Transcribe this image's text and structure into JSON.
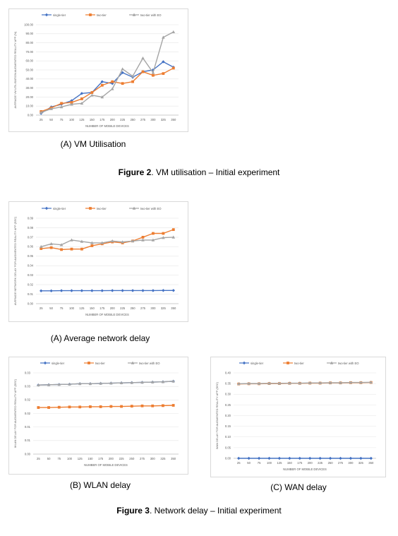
{
  "figure2": {
    "label": "Figure 2",
    "text": ". VM utilisation – Initial experiment"
  },
  "figure3": {
    "label": "Figure 3",
    "text": ". Network delay – Initial experiment"
  },
  "charts": [
    {
      "id": "vm",
      "caption": "(A) VM Utilisation",
      "chart_data": {
        "type": "line",
        "ylabel": "AVERAGE VM UTILISATION AUGMENTED REALITY APP (%)",
        "xlabel": "NUMBER OF MOBILE DEVICES",
        "categories": [
          "25",
          "50",
          "75",
          "100",
          "125",
          "150",
          "175",
          "200",
          "225",
          "250",
          "275",
          "300",
          "325",
          "350"
        ],
        "ylim": [
          0,
          100
        ],
        "yticks": [
          "0.00",
          "10.00",
          "20.00",
          "30.00",
          "40.00",
          "50.00",
          "60.00",
          "70.00",
          "80.00",
          "90.00",
          "100.00"
        ],
        "ytickvals": [
          0,
          10,
          20,
          30,
          40,
          50,
          60,
          70,
          80,
          90,
          100
        ],
        "series": [
          {
            "name": "single-tier",
            "color": "#4472c4",
            "marker": "diamond",
            "values": [
              2,
              9,
              12,
              16,
              24,
              25,
              37,
              35,
              47,
              42,
              48,
              50,
              59,
              53
            ]
          },
          {
            "name": "two-tier",
            "color": "#ed7d31",
            "marker": "square",
            "values": [
              4,
              8,
              13,
              14,
              18,
              25,
              33,
              37,
              35,
              37,
              48,
              44,
              46,
              52
            ]
          },
          {
            "name": "two-tier with EO",
            "color": "#a5a5a5",
            "marker": "triangle",
            "values": [
              3,
              7,
              9,
              12,
              13,
              22,
              20,
              29,
              51,
              43,
              63,
              47,
              86,
              92
            ]
          }
        ]
      }
    },
    {
      "id": "net",
      "caption": "(A) Average network delay",
      "chart_data": {
        "type": "line",
        "ylabel": "AVERAGE NETWORK DELAY FOR AUGMENTED REALITY APP (SEC)",
        "xlabel": "NUMBER OF MOBILE DEVICES",
        "categories": [
          "25",
          "50",
          "75",
          "100",
          "125",
          "150",
          "175",
          "200",
          "225",
          "250",
          "275",
          "300",
          "325",
          "350"
        ],
        "ylim": [
          0,
          0.09
        ],
        "yticks": [
          "0.00",
          "0.01",
          "0.02",
          "0.03",
          "0.04",
          "0.05",
          "0.06",
          "0.07",
          "0.08",
          "0.09"
        ],
        "ytickvals": [
          0,
          0.01,
          0.02,
          0.03,
          0.04,
          0.05,
          0.06,
          0.07,
          0.08,
          0.09
        ],
        "series": [
          {
            "name": "single-tier",
            "color": "#4472c4",
            "marker": "diamond",
            "values": [
              0.0135,
              0.0135,
              0.0137,
              0.0137,
              0.0137,
              0.0137,
              0.0137,
              0.0138,
              0.0138,
              0.0138,
              0.0138,
              0.0138,
              0.0139,
              0.0139
            ]
          },
          {
            "name": "two-tier",
            "color": "#ed7d31",
            "marker": "square",
            "values": [
              0.058,
              0.059,
              0.057,
              0.0575,
              0.0575,
              0.061,
              0.063,
              0.065,
              0.064,
              0.066,
              0.07,
              0.074,
              0.074,
              0.078
            ]
          },
          {
            "name": "two-tier with EO",
            "color": "#a5a5a5",
            "marker": "triangle",
            "values": [
              0.06,
              0.063,
              0.062,
              0.067,
              0.0655,
              0.064,
              0.064,
              0.066,
              0.065,
              0.066,
              0.067,
              0.067,
              0.0695,
              0.07
            ]
          }
        ]
      }
    },
    {
      "id": "wlan",
      "caption": "(B) WLAN delay",
      "chart_data": {
        "type": "line",
        "ylabel": "WLAN DELAY FOR AUGMENTED REALITY APP (SEC)",
        "xlabel": "NUMBER OF MOBILE DEVICES",
        "categories": [
          "25",
          "50",
          "75",
          "100",
          "125",
          "150",
          "175",
          "200",
          "225",
          "250",
          "275",
          "300",
          "325",
          "350"
        ],
        "ylim": [
          0,
          0.03
        ],
        "yticks": [
          "0.00",
          "0.01",
          "0.01",
          "0.02",
          "0.02",
          "0.03",
          "0.03"
        ],
        "ytickvals": [
          0,
          0.005,
          0.01,
          0.015,
          0.02,
          0.025,
          0.03
        ],
        "series": [
          {
            "name": "single-tier",
            "color": "#4472c4",
            "marker": "diamond",
            "values": [
              0.0255,
              0.0256,
              0.0257,
              0.0258,
              0.026,
              0.026,
              0.0261,
              0.0262,
              0.0263,
              0.0264,
              0.0265,
              0.0266,
              0.0267,
              0.0269
            ]
          },
          {
            "name": "two-tier",
            "color": "#ed7d31",
            "marker": "square",
            "values": [
              0.0172,
              0.0172,
              0.0173,
              0.0174,
              0.0174,
              0.0175,
              0.0175,
              0.0176,
              0.0176,
              0.0177,
              0.0178,
              0.0178,
              0.0179,
              0.018
            ]
          },
          {
            "name": "two-tier with EO",
            "color": "#a5a5a5",
            "marker": "triangle",
            "values": [
              0.0255,
              0.0256,
              0.0257,
              0.0258,
              0.026,
              0.026,
              0.0261,
              0.0262,
              0.0263,
              0.0264,
              0.0265,
              0.0266,
              0.0267,
              0.0269
            ]
          }
        ]
      }
    },
    {
      "id": "wan",
      "caption": "(C) WAN delay",
      "chart_data": {
        "type": "line",
        "ylabel": "WAN DELAY FOR AUGMENTED REALITY APP (SEC)",
        "xlabel": "NUMBER OF MOBILE DEVICES",
        "categories": [
          "25",
          "50",
          "75",
          "100",
          "125",
          "150",
          "175",
          "200",
          "225",
          "250",
          "275",
          "300",
          "325",
          "350"
        ],
        "ylim": [
          0,
          0.4
        ],
        "yticks": [
          "0.00",
          "0.05",
          "0.10",
          "0.15",
          "0.20",
          "0.25",
          "0.30",
          "0.35",
          "0.40"
        ],
        "ytickvals": [
          0,
          0.05,
          0.1,
          0.15,
          0.2,
          0.25,
          0.3,
          0.35,
          0.4
        ],
        "series": [
          {
            "name": "single-tier",
            "color": "#4472c4",
            "marker": "diamond",
            "values": [
              0,
              0,
              0,
              0,
              0,
              0,
              0,
              0,
              0,
              0,
              0,
              0,
              0,
              0
            ]
          },
          {
            "name": "two-tier",
            "color": "#ed7d31",
            "marker": "square",
            "values": [
              0.348,
              0.349,
              0.349,
              0.35,
              0.35,
              0.351,
              0.351,
              0.352,
              0.352,
              0.353,
              0.353,
              0.354,
              0.354,
              0.355
            ]
          },
          {
            "name": "two-tier with EO",
            "color": "#a5a5a5",
            "marker": "triangle",
            "values": [
              0.349,
              0.35,
              0.35,
              0.351,
              0.351,
              0.352,
              0.352,
              0.353,
              0.353,
              0.354,
              0.354,
              0.355,
              0.355,
              0.356
            ]
          }
        ]
      }
    }
  ]
}
